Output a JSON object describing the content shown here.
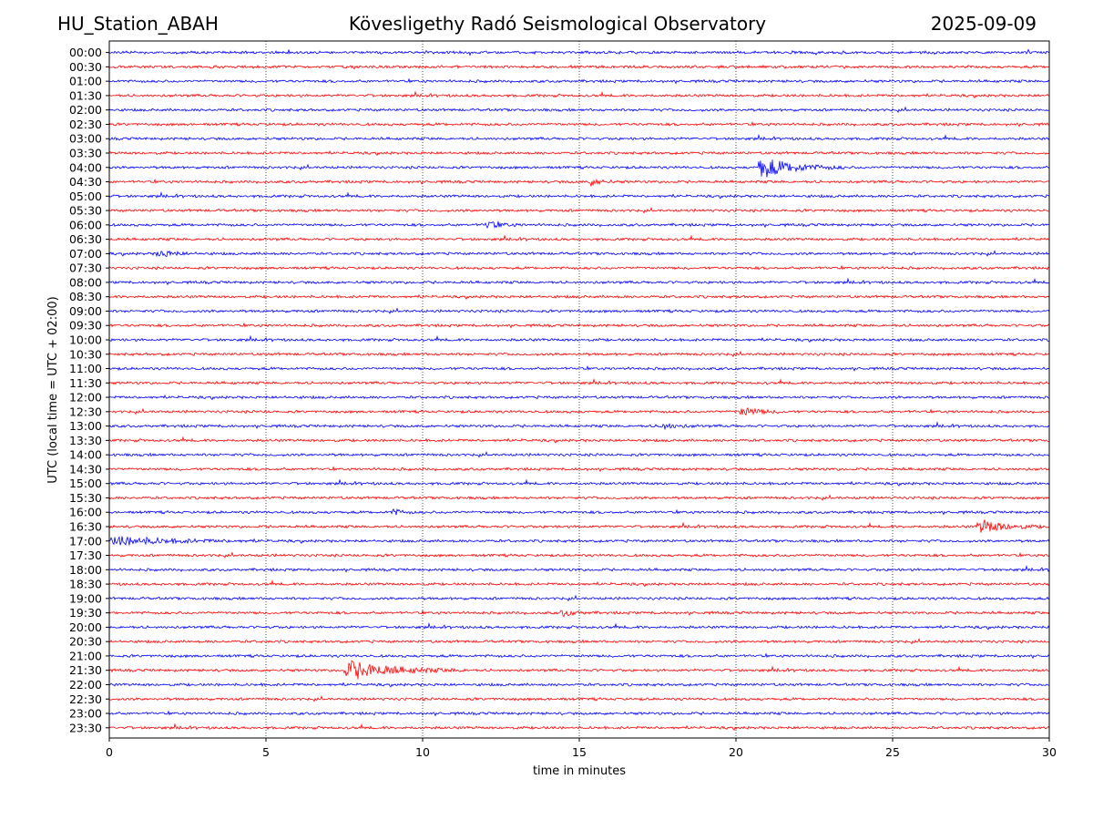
{
  "header": {
    "station": "HU_Station_ABAH",
    "title": "Kövesligethy Radó Seismological Observatory",
    "date": "2025-09-09"
  },
  "chart_data": {
    "type": "line",
    "xlabel": "time in minutes",
    "ylabel": "UTC (local time = UTC + 02:00)",
    "xlim": [
      0,
      30
    ],
    "x_ticks": [
      0,
      5,
      10,
      15,
      20,
      25,
      30
    ],
    "grid": "vertical dotted at x ticks",
    "row_labels": [
      "00:00",
      "00:30",
      "01:00",
      "01:30",
      "02:00",
      "02:30",
      "03:00",
      "03:30",
      "04:00",
      "04:30",
      "05:00",
      "05:30",
      "06:00",
      "06:30",
      "07:00",
      "07:30",
      "08:00",
      "08:30",
      "09:00",
      "09:30",
      "10:00",
      "10:30",
      "11:00",
      "11:30",
      "12:00",
      "12:30",
      "13:00",
      "13:30",
      "14:00",
      "14:30",
      "15:00",
      "15:30",
      "16:00",
      "16:30",
      "17:00",
      "17:30",
      "18:00",
      "18:30",
      "19:00",
      "19:30",
      "20:00",
      "20:30",
      "21:00",
      "21:30",
      "22:00",
      "22:30",
      "23:00",
      "23:30"
    ],
    "row_colors": [
      "#0000ff",
      "#ff0000"
    ],
    "events": [
      {
        "row": "04:00",
        "x_start": 20.7,
        "x_end": 23.5,
        "amplitude": 1.0
      },
      {
        "row": "04:30",
        "x_start": 15.3,
        "x_end": 16.2,
        "amplitude": 0.4
      },
      {
        "row": "06:00",
        "x_start": 12.0,
        "x_end": 13.2,
        "amplitude": 0.35
      },
      {
        "row": "07:00",
        "x_start": 1.5,
        "x_end": 3.0,
        "amplitude": 0.3
      },
      {
        "row": "12:30",
        "x_start": 20.1,
        "x_end": 21.6,
        "amplitude": 0.45
      },
      {
        "row": "13:00",
        "x_start": 17.5,
        "x_end": 19.0,
        "amplitude": 0.25
      },
      {
        "row": "16:00",
        "x_start": 9.0,
        "x_end": 9.8,
        "amplitude": 0.3
      },
      {
        "row": "16:30",
        "x_start": 27.7,
        "x_end": 30.0,
        "amplitude": 0.65
      },
      {
        "row": "17:00",
        "x_start": 0.0,
        "x_end": 5.0,
        "amplitude": 0.4
      },
      {
        "row": "19:30",
        "x_start": 14.4,
        "x_end": 15.6,
        "amplitude": 0.3
      },
      {
        "row": "21:30",
        "x_start": 7.5,
        "x_end": 11.5,
        "amplitude": 0.85
      }
    ]
  }
}
